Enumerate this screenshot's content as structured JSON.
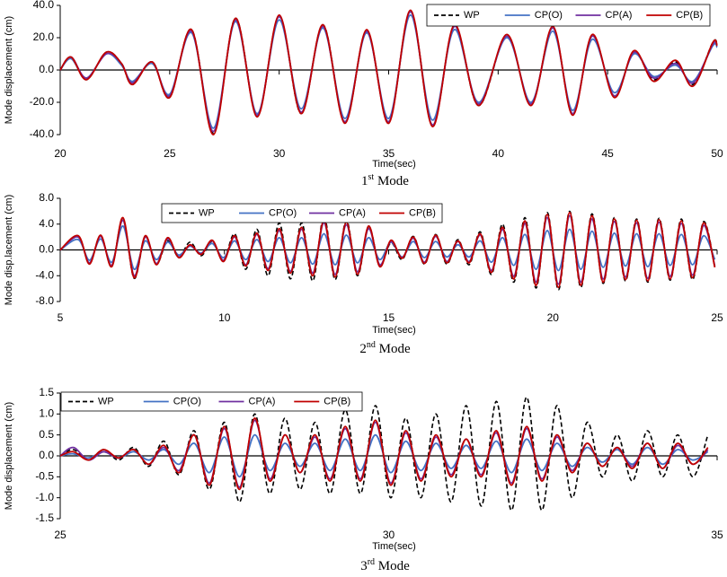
{
  "chart_data": [
    {
      "type": "line",
      "y_label": "Mode displacement (cm)",
      "x_label": "Time(sec)",
      "caption": {
        "number": "1",
        "suffix": "st",
        "text": "Mode"
      },
      "xlim": [
        20,
        50
      ],
      "xticks": [
        20,
        25,
        30,
        35,
        40,
        45,
        50
      ],
      "ylim": [
        -40,
        40
      ],
      "yticks": [
        {
          "value": -40,
          "label": "-40.0"
        },
        {
          "value": -20,
          "label": "-20.0"
        },
        {
          "value": 0,
          "label": "0.0"
        },
        {
          "value": 20,
          "label": "20.0"
        },
        {
          "value": 40,
          "label": "40.0"
        }
      ],
      "x": [
        20,
        20.5,
        21.2,
        22.1,
        22.8,
        23.3,
        24.2,
        25.0,
        26.0,
        27.0,
        28.0,
        29.0,
        30.0,
        31.0,
        32.0,
        33.0,
        34.0,
        35.0,
        36.0,
        37.0,
        38.0,
        39.1,
        40.4,
        41.5,
        42.5,
        43.4,
        44.3,
        45.3,
        46.2,
        47.1,
        48.1,
        48.9,
        49.8,
        50
      ],
      "series": [
        {
          "name": "WP",
          "color": "#000000",
          "style": "dashed",
          "values": [
            0,
            8,
            -6,
            11,
            4,
            -9,
            5,
            -17,
            25,
            -39,
            32,
            -28,
            33,
            -27,
            28,
            -32,
            24,
            -32,
            36,
            -34,
            27,
            -22,
            21,
            -21,
            26,
            -27,
            21,
            -16,
            11,
            -6,
            5,
            -9,
            17,
            16
          ]
        },
        {
          "name": "CP(O)",
          "color": "#4472c4",
          "style": "solid",
          "values": [
            0,
            7,
            -5,
            10,
            3,
            -7,
            4,
            -15,
            23,
            -36,
            30,
            -27,
            31,
            -24,
            26,
            -30,
            23,
            -30,
            34,
            -31,
            25,
            -20,
            20,
            -20,
            24,
            -25,
            19,
            -14,
            10,
            -4,
            3,
            -7,
            15,
            14
          ]
        },
        {
          "name": "CP(A)",
          "color": "#7030a0",
          "style": "solid",
          "values": [
            0,
            8,
            -5,
            10,
            4,
            -8,
            5,
            -16,
            24,
            -38,
            31,
            -28,
            33,
            -26,
            27,
            -32,
            24,
            -32,
            36,
            -34,
            27,
            -21,
            21,
            -21,
            26,
            -27,
            21,
            -16,
            11,
            -5,
            4,
            -8,
            16,
            15
          ]
        },
        {
          "name": "CP(B)",
          "color": "#c00000",
          "style": "solid",
          "values": [
            0,
            8,
            -6,
            11,
            4,
            -9,
            5,
            -17,
            25,
            -40,
            32,
            -29,
            34,
            -27,
            28,
            -33,
            25,
            -33,
            37,
            -35,
            28,
            -22,
            22,
            -22,
            27,
            -28,
            22,
            -17,
            12,
            -7,
            6,
            -10,
            17,
            15
          ]
        }
      ]
    },
    {
      "type": "line",
      "y_label": "Mode disp.lacement (cm)",
      "x_label": "Time(sec)",
      "caption": {
        "number": "2",
        "suffix": "nd",
        "text": "Mode"
      },
      "xlim": [
        5,
        25
      ],
      "xticks": [
        5,
        10,
        15,
        20,
        25
      ],
      "ylim": [
        -8,
        8
      ],
      "yticks": [
        {
          "value": -8,
          "label": "-8.0"
        },
        {
          "value": -4,
          "label": "-4.0"
        },
        {
          "value": 0,
          "label": "0.0"
        },
        {
          "value": 4,
          "label": "4.0"
        },
        {
          "value": 8,
          "label": "8.0"
        }
      ],
      "x": [
        5,
        5.55,
        5.89,
        6.23,
        6.57,
        6.91,
        7.25,
        7.59,
        7.93,
        8.27,
        8.61,
        8.95,
        9.29,
        9.63,
        9.97,
        10.31,
        10.65,
        10.99,
        11.33,
        11.67,
        12.01,
        12.35,
        12.69,
        13.03,
        13.37,
        13.71,
        14.05,
        14.39,
        14.73,
        15.07,
        15.41,
        15.75,
        16.09,
        16.43,
        16.77,
        17.11,
        17.45,
        17.79,
        18.13,
        18.47,
        18.81,
        19.15,
        19.49,
        19.83,
        20.17,
        20.51,
        20.85,
        21.19,
        21.53,
        21.87,
        22.21,
        22.55,
        22.89,
        23.23,
        23.57,
        23.91,
        24.25,
        24.59,
        24.93
      ],
      "series": [
        {
          "name": "WP",
          "color": "#000000",
          "style": "dashed",
          "values": [
            0,
            2.0,
            -2.0,
            2.2,
            -2.4,
            4.8,
            -4.4,
            2.0,
            -2.2,
            1.4,
            -1.1,
            1.2,
            -0.9,
            1.3,
            -1.6,
            2.5,
            -3.0,
            3.2,
            -4.0,
            4.2,
            -4.5,
            4.2,
            -4.8,
            5.2,
            -4.6,
            4.6,
            -4.0,
            3.6,
            -2.4,
            1.1,
            -1.5,
            2.1,
            -2.2,
            2.4,
            -2.2,
            1.6,
            -2.3,
            2.8,
            -3.8,
            4.0,
            -5.0,
            5.0,
            -5.9,
            5.8,
            -6.2,
            6.0,
            -5.8,
            5.6,
            -5.2,
            5.0,
            -4.8,
            4.8,
            -5.0,
            4.9,
            -4.7,
            4.8,
            -4.6,
            4.4,
            -2.6
          ]
        },
        {
          "name": "CP(O)",
          "color": "#4472c4",
          "style": "solid",
          "values": [
            0,
            1.6,
            -1.6,
            1.7,
            -1.9,
            3.7,
            -3.0,
            1.4,
            -1.5,
            1.2,
            -0.8,
            0.6,
            -0.5,
            1.0,
            -1.2,
            1.4,
            -1.5,
            1.6,
            -1.8,
            1.9,
            -2.0,
            1.9,
            -2.2,
            2.5,
            -2.3,
            2.3,
            -2.0,
            1.9,
            -1.5,
            1.2,
            -1.1,
            1.3,
            -1.2,
            1.3,
            -1.1,
            0.8,
            -1.1,
            1.4,
            -1.9,
            1.9,
            -2.4,
            2.4,
            -3.0,
            3.0,
            -3.2,
            3.2,
            -3.0,
            2.9,
            -2.7,
            2.6,
            -2.5,
            2.5,
            -2.6,
            2.5,
            -2.4,
            2.4,
            -2.3,
            2.2,
            -1.5
          ]
        },
        {
          "name": "CP(A)",
          "color": "#7030a0",
          "style": "solid",
          "values": [
            0,
            2.0,
            -2.0,
            2.1,
            -2.4,
            4.6,
            -4.0,
            2.0,
            -2.1,
            1.7,
            -1.1,
            0.7,
            -0.6,
            1.4,
            -1.6,
            2.0,
            -2.3,
            2.4,
            -2.9,
            3.0,
            -3.3,
            3.2,
            -3.6,
            4.2,
            -3.8,
            3.9,
            -3.4,
            3.3,
            -2.3,
            1.3,
            -1.2,
            1.8,
            -1.9,
            2.1,
            -1.8,
            1.3,
            -1.8,
            2.3,
            -3.2,
            3.2,
            -4.1,
            4.1,
            -5.0,
            5.0,
            -5.3,
            5.3,
            -5.0,
            4.8,
            -4.5,
            4.4,
            -4.2,
            4.2,
            -4.4,
            4.3,
            -4.1,
            4.1,
            -3.9,
            3.8,
            -2.5
          ]
        },
        {
          "name": "CP(B)",
          "color": "#c00000",
          "style": "solid",
          "values": [
            0,
            2.2,
            -2.2,
            2.3,
            -2.6,
            5.0,
            -4.3,
            2.2,
            -2.3,
            1.9,
            -1.2,
            0.8,
            -0.7,
            1.5,
            -1.8,
            2.2,
            -2.5,
            2.6,
            -3.2,
            3.3,
            -3.6,
            3.5,
            -4.0,
            4.6,
            -4.2,
            4.3,
            -3.8,
            3.7,
            -2.6,
            1.5,
            -1.3,
            2.0,
            -2.1,
            2.3,
            -2.0,
            1.4,
            -2.0,
            2.5,
            -3.5,
            3.5,
            -4.5,
            4.5,
            -5.5,
            5.5,
            -5.8,
            5.8,
            -5.5,
            5.3,
            -5.0,
            4.8,
            -4.6,
            4.6,
            -4.8,
            4.7,
            -4.5,
            4.5,
            -4.3,
            4.2,
            -2.7
          ]
        }
      ]
    },
    {
      "type": "line",
      "y_label": "Mode displacement (cm)",
      "x_label": "Time(sec)",
      "caption": {
        "number": "3",
        "suffix": "rd",
        "text": "Mode"
      },
      "xlim": [
        25,
        35
      ],
      "xticks": [
        25,
        30,
        35
      ],
      "ylim": [
        -1.5,
        1.5
      ],
      "yticks": [
        {
          "value": -1.5,
          "label": "-1.5"
        },
        {
          "value": -1,
          "label": "-1.0"
        },
        {
          "value": -0.5,
          "label": "-0.5"
        },
        {
          "value": 0,
          "label": "0.0"
        },
        {
          "value": 0.5,
          "label": "0.5"
        },
        {
          "value": 1,
          "label": "1.0"
        },
        {
          "value": 1.5,
          "label": "1.5"
        }
      ],
      "x": [
        25,
        25.2,
        25.43,
        25.66,
        25.89,
        26.12,
        26.35,
        26.58,
        26.81,
        27.04,
        27.27,
        27.5,
        27.73,
        27.96,
        28.19,
        28.42,
        28.65,
        28.88,
        29.11,
        29.34,
        29.57,
        29.8,
        30.03,
        30.26,
        30.49,
        30.72,
        30.95,
        31.18,
        31.41,
        31.64,
        31.87,
        32.1,
        32.33,
        32.56,
        32.79,
        33.02,
        33.25,
        33.48,
        33.71,
        33.94,
        34.17,
        34.4,
        34.63,
        34.86
      ],
      "series": [
        {
          "name": "WP",
          "color": "#000000",
          "style": "dashed",
          "values": [
            0,
            0.15,
            -0.1,
            0.15,
            -0.1,
            0.2,
            -0.25,
            0.35,
            -0.45,
            0.6,
            -0.8,
            0.8,
            -1.1,
            1.0,
            -0.9,
            0.9,
            -0.8,
            0.8,
            -0.9,
            1.1,
            -0.9,
            1.2,
            -1.0,
            0.9,
            -1.0,
            1.0,
            -1.1,
            1.2,
            -1.2,
            1.3,
            -1.3,
            1.4,
            -1.3,
            1.2,
            -1.0,
            0.8,
            -0.5,
            0.5,
            -0.6,
            0.6,
            -0.5,
            0.5,
            -0.5,
            0.5
          ]
        },
        {
          "name": "CP(O)",
          "color": "#4472c4",
          "style": "solid",
          "values": [
            0,
            0.05,
            -0.05,
            0.1,
            -0.05,
            0.1,
            -0.1,
            0.15,
            -0.2,
            0.3,
            -0.4,
            0.45,
            -0.5,
            0.5,
            -0.35,
            0.3,
            -0.25,
            0.3,
            -0.35,
            0.4,
            -0.35,
            0.5,
            -0.4,
            0.35,
            -0.35,
            0.3,
            -0.3,
            0.25,
            -0.3,
            0.35,
            -0.4,
            0.4,
            -0.35,
            0.3,
            -0.25,
            0.2,
            -0.15,
            0.15,
            -0.2,
            0.2,
            -0.2,
            0.15,
            -0.1,
            0.1
          ]
        },
        {
          "name": "CP(A)",
          "color": "#7030a0",
          "style": "solid",
          "values": [
            0,
            0.2,
            -0.1,
            0.1,
            -0.05,
            0.15,
            -0.2,
            0.2,
            -0.35,
            0.5,
            -0.65,
            0.65,
            -0.75,
            0.85,
            -0.55,
            0.5,
            -0.4,
            0.45,
            -0.55,
            0.65,
            -0.55,
            0.8,
            -0.65,
            0.55,
            -0.55,
            0.45,
            -0.45,
            0.4,
            -0.45,
            0.55,
            -0.65,
            0.65,
            -0.55,
            0.45,
            -0.35,
            0.3,
            -0.25,
            0.2,
            -0.25,
            0.3,
            -0.3,
            0.25,
            -0.2,
            0.15
          ]
        },
        {
          "name": "CP(B)",
          "color": "#c00000",
          "style": "solid",
          "values": [
            0,
            0.1,
            -0.1,
            0.15,
            -0.05,
            0.15,
            -0.2,
            0.25,
            -0.4,
            0.5,
            -0.7,
            0.7,
            -0.8,
            0.9,
            -0.6,
            0.5,
            -0.4,
            0.5,
            -0.6,
            0.7,
            -0.6,
            0.85,
            -0.7,
            0.6,
            -0.6,
            0.5,
            -0.5,
            0.4,
            -0.5,
            0.6,
            -0.7,
            0.7,
            -0.6,
            0.5,
            -0.4,
            0.3,
            -0.25,
            0.2,
            -0.3,
            0.3,
            -0.3,
            0.3,
            -0.2,
            0.2
          ]
        }
      ]
    }
  ]
}
